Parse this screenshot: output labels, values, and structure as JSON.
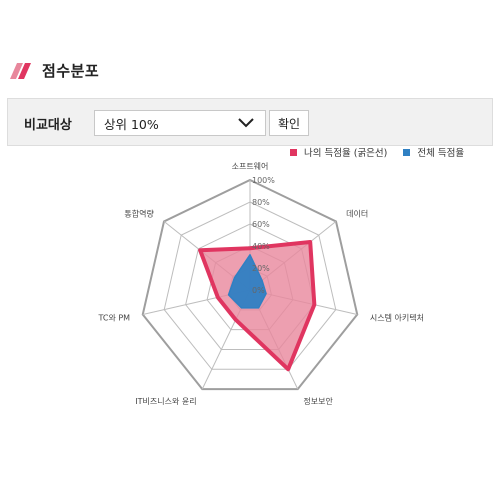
{
  "section": {
    "title": "점수분포"
  },
  "compare": {
    "label": "비교대상",
    "selected": "상위 10%",
    "confirm_label": "확인"
  },
  "colors": {
    "mine": "#e03560",
    "mine_fill": "#e8879c",
    "overall": "#2f80c3",
    "grid": "#bdbdbd",
    "frame": "#9e9e9e"
  },
  "chart_data": {
    "type": "radar",
    "categories": [
      "소프트웨어",
      "데이터",
      "시스템 아키텍처",
      "정보보안",
      "IT비즈니스와 윤리",
      "TC와 PM",
      "통합역량"
    ],
    "rlim": [
      0,
      100
    ],
    "tick_labels": [
      "0%",
      "20%",
      "40%",
      "60%",
      "80%",
      "100%"
    ],
    "legend_position": "top-right",
    "series": [
      {
        "name": "나의 득점율 (굵은선)",
        "values": [
          38,
          70,
          60,
          80,
          30,
          30,
          58
        ]
      },
      {
        "name": "전체 득점율",
        "values": [
          32,
          14,
          15,
          18,
          18,
          20,
          18
        ]
      }
    ]
  }
}
